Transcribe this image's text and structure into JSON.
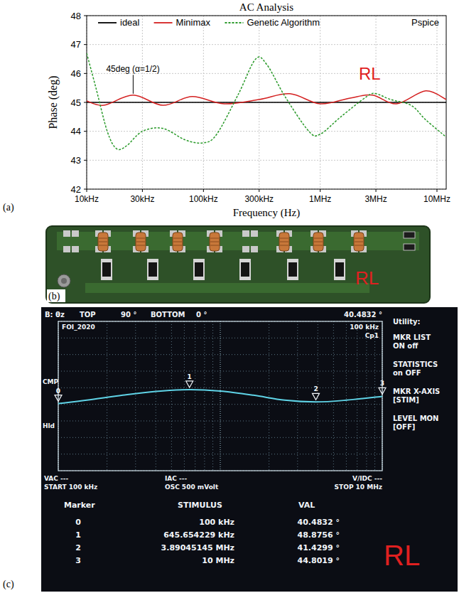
{
  "chart_data": [
    {
      "type": "line",
      "panel_label": "(a)",
      "title": "AC Analysis",
      "x_label": "Frequency (Hz)",
      "y_label": "Phase (deg)",
      "log": "x",
      "grid": true,
      "legend": "top",
      "xlim": [
        10000,
        12000000
      ],
      "ylim": [
        42,
        48
      ],
      "xticks": [
        {
          "value": 10000,
          "label": "10kHz"
        },
        {
          "value": 30000,
          "label": "30kHz"
        },
        {
          "value": 100000,
          "label": "100kHz"
        },
        {
          "value": 300000,
          "label": "300kHz"
        },
        {
          "value": 1000000,
          "label": "1MHz"
        },
        {
          "value": 3000000,
          "label": "3MHz"
        },
        {
          "value": 10000000,
          "label": "10MHz"
        }
      ],
      "yticks": [
        42,
        43,
        44,
        45,
        46,
        47,
        48
      ],
      "series": [
        {
          "name": "ideal",
          "color": "#000000",
          "line_style": "solid",
          "x": [
            10000,
            12000000
          ],
          "values": [
            45,
            45
          ]
        },
        {
          "name": "Minimax",
          "color": "#d42020",
          "line_style": "solid",
          "x": [
            10000,
            14000,
            25000,
            45000,
            80000,
            150000,
            300000,
            550000,
            1000000,
            1800000,
            2800000,
            4500000,
            8000000,
            12000000
          ],
          "values": [
            45.05,
            44.9,
            45.25,
            44.9,
            45.2,
            44.95,
            45.1,
            45.3,
            44.95,
            45.15,
            45.25,
            44.95,
            45.4,
            45.1
          ]
        },
        {
          "name": "Genetic Algorithm",
          "color": "#2a9a2a",
          "line_style": "dotted",
          "x": [
            10000,
            12000,
            15000,
            18000,
            22000,
            30000,
            45000,
            70000,
            100000,
            130000,
            200000,
            280000,
            350000,
            500000,
            800000,
            1000000,
            1500000,
            2500000,
            3000000,
            4000000,
            6000000,
            8000000,
            12000000
          ],
          "values": [
            46.7,
            45.5,
            44.0,
            43.4,
            43.5,
            44.0,
            44.1,
            43.7,
            43.6,
            43.9,
            45.3,
            46.5,
            46.3,
            45.2,
            44.0,
            43.9,
            44.5,
            45.2,
            45.3,
            45.1,
            44.9,
            44.4,
            43.8
          ]
        }
      ],
      "annotations": [
        {
          "text": "45deg (α=1/2)",
          "x": 25000,
          "y": 45.25
        },
        {
          "text": "Pspice"
        },
        {
          "text": "RL",
          "color": "#e02020"
        }
      ]
    },
    {
      "type": "line",
      "panel_label": "(c)",
      "log": "x",
      "grid": true,
      "tick_labels": false,
      "xlim": [
        100000,
        10000000
      ],
      "ylim": [
        0,
        90
      ],
      "xticks": [
        100000,
        1000000,
        10000000
      ],
      "yticks": [
        0,
        10,
        20,
        30,
        40,
        50,
        60,
        70,
        80,
        90
      ],
      "series": [
        {
          "color": "#5fd3e6",
          "line_style": "solid",
          "x": [
            100000,
            150000,
            250000,
            400000,
            645654.229,
            1000000,
            1600000,
            2500000,
            3890451.45,
            6000000,
            10000000
          ],
          "values": [
            40.4832,
            42.5,
            45.5,
            47.8,
            48.8756,
            48,
            45.5,
            42.5,
            41.4299,
            42.5,
            44.8019
          ]
        }
      ],
      "markers": {
        "labels": [
          0,
          1,
          2,
          3
        ],
        "x": [
          100000,
          645654.229,
          3890451.45,
          10000000
        ],
        "values": [
          40.4832,
          48.8756,
          41.4299,
          44.8019
        ],
        "x_labels": [
          "100 kHz",
          "645.654229 kHz",
          "3.89045145 MHz",
          "10 MHz"
        ],
        "value_labels": [
          "40.4832 °",
          "48.8756 °",
          "41.4299 °",
          "44.8019 °"
        ]
      }
    }
  ],
  "photo": {
    "panel_label": "(b)",
    "label": "RL"
  },
  "screen": {
    "trace_label": "B: θz",
    "top_label": "TOP",
    "top_value": "90 °",
    "bottom_label": "BOTTOM",
    "bottom_value": "0 °",
    "readout": "40.4832 °",
    "file_label": "FOI_2020",
    "freq": "100 kHz",
    "mode": "Cp1",
    "left_labels": [
      "CMP",
      "Hld"
    ],
    "menu": [
      {
        "title": "Utility:"
      },
      {
        "title": "MKR LIST",
        "value": "ON off"
      },
      {
        "title": "STATISTICS",
        "value": "on OFF"
      },
      {
        "title": "MKR X-AXIS",
        "value": "[STIM]"
      },
      {
        "title": "LEVEL MON",
        "value": "[OFF]"
      }
    ],
    "status": [
      "VAC ---",
      "START 100 kHz",
      "IAC ---",
      "OSC 500 mVolt",
      "V/IDC ---",
      "STOP 10 MHz"
    ],
    "table_headers": [
      "Marker",
      "STIMULUS",
      "VAL"
    ],
    "tag": "RL"
  }
}
